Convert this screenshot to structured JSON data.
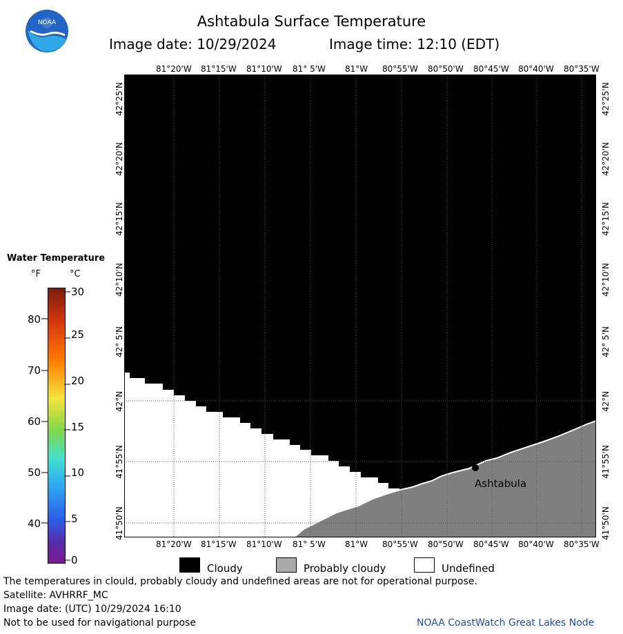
{
  "header": {
    "title": "Ashtabula Surface Temperature",
    "image_date": "Image date: 10/29/2024",
    "image_time": "Image time: 12:10 (EDT)"
  },
  "colors": {
    "cloudy": "#000000",
    "probably_cloudy": "#7f7f7f",
    "undefined": "#ffffff",
    "credit": "#1f4fa8"
  },
  "map": {
    "lon_labels": [
      "81°20'W",
      "81°15'W",
      "81°10'W",
      "81° 5'W",
      "81°W",
      "80°55'W",
      "80°50'W",
      "80°45'W",
      "80°40'W",
      "80°35'W"
    ],
    "lat_labels": [
      "42°25'N",
      "42°20'N",
      "42°15'N",
      "42°10'N",
      "42° 5'N",
      "42°N",
      "41°55'N",
      "41°50'N"
    ],
    "city": "Ashtabula"
  },
  "scale": {
    "title": "Water Temperature",
    "f_unit": "°F",
    "c_unit": "°C",
    "f_ticks": [
      "80",
      "70",
      "60",
      "50",
      "40"
    ],
    "c_ticks": [
      "30",
      "25",
      "20",
      "15",
      "10",
      "5",
      "0"
    ]
  },
  "legend": {
    "cloudy": "Cloudy",
    "probably_cloudy": "Probably cloudy",
    "undefined": "Undefined"
  },
  "footer": {
    "disclaimer": "The temperatures in clould, probably cloudy and undefined areas are not for operational purpose.",
    "satellite": "Satellite: AVHRRF_MC",
    "utc_date": "Image date: (UTC) 10/29/2024  16:10",
    "nav_warning": "Not to be used for navigational purpose",
    "credit": "NOAA CoastWatch Great Lakes Node"
  }
}
